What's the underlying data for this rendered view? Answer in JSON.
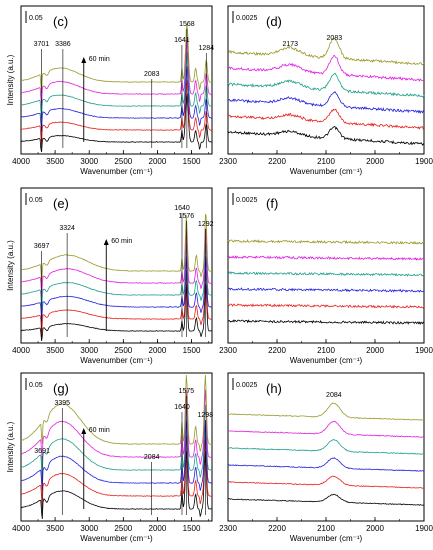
{
  "chart_data": [
    {
      "type": "line",
      "panel": "(c)",
      "scale_bar": "0.05",
      "xlabel": "Wavenumber (cm⁻¹)",
      "ylabel": "Intensity (a.u.)",
      "xlim": [
        4000,
        1200
      ],
      "x_ticks": [
        "4000",
        "3500",
        "3000",
        "2500",
        "2000",
        "1500"
      ],
      "time_arrow": "60 min",
      "peaks": [
        {
          "label": "3701",
          "x": 3701
        },
        {
          "label": "3386",
          "x": 3386
        },
        {
          "label": "2083",
          "x": 2083
        },
        {
          "label": "1641",
          "x": 1641
        },
        {
          "label": "1568",
          "x": 1568
        },
        {
          "label": "1284",
          "x": 1284
        }
      ],
      "series_colors": [
        "#000000",
        "#e8201c",
        "#2020e0",
        "#1fa08c",
        "#e020e0",
        "#9a9a2a"
      ]
    },
    {
      "type": "line",
      "panel": "(d)",
      "scale_bar": "0.0025",
      "xlabel": "Wavenumber (cm⁻¹)",
      "ylabel": "",
      "xlim": [
        2300,
        1900
      ],
      "x_ticks": [
        "2300",
        "2200",
        "2100",
        "2000",
        "1900"
      ],
      "peaks": [
        {
          "label": "2173",
          "x": 2173
        },
        {
          "label": "2083",
          "x": 2083
        }
      ],
      "series_colors": [
        "#000000",
        "#e8201c",
        "#2020e0",
        "#1fa08c",
        "#e020e0",
        "#9a9a2a"
      ]
    },
    {
      "type": "line",
      "panel": "(e)",
      "scale_bar": "0.05",
      "xlabel": "Wavenumber (cm⁻¹)",
      "ylabel": "Intensity (a.u.)",
      "xlim": [
        4000,
        1200
      ],
      "x_ticks": [
        "4000",
        "3500",
        "3000",
        "2500",
        "2000",
        "1500"
      ],
      "time_arrow": "60 min",
      "peaks": [
        {
          "label": "3697",
          "x": 3697
        },
        {
          "label": "3324",
          "x": 3324
        },
        {
          "label": "1640",
          "x": 1640
        },
        {
          "label": "1576",
          "x": 1576
        },
        {
          "label": "1292",
          "x": 1292
        }
      ],
      "series_colors": [
        "#000000",
        "#e8201c",
        "#2020e0",
        "#1fa08c",
        "#e020e0",
        "#9a9a2a"
      ]
    },
    {
      "type": "line",
      "panel": "(f)",
      "scale_bar": "0.0025",
      "xlabel": "Wavenumber (cm⁻¹)",
      "ylabel": "",
      "xlim": [
        2300,
        1900
      ],
      "x_ticks": [
        "2300",
        "2200",
        "2100",
        "2000",
        "1900"
      ],
      "peaks": [],
      "series_colors": [
        "#000000",
        "#e8201c",
        "#2020e0",
        "#1fa08c",
        "#e020e0",
        "#9a9a2a"
      ]
    },
    {
      "type": "line",
      "panel": "(g)",
      "scale_bar": "0.05",
      "xlabel": "Wavenumber (cm⁻¹)",
      "ylabel": "Intensity (a.u.)",
      "xlim": [
        4000,
        1200
      ],
      "x_ticks": [
        "4000",
        "3500",
        "3000",
        "2500",
        "2000",
        "1500"
      ],
      "time_arrow": "60 min",
      "peaks": [
        {
          "label": "3691",
          "x": 3691
        },
        {
          "label": "3395",
          "x": 3395
        },
        {
          "label": "2084",
          "x": 2084
        },
        {
          "label": "1640",
          "x": 1640
        },
        {
          "label": "1575",
          "x": 1575
        },
        {
          "label": "1298",
          "x": 1298
        }
      ],
      "series_colors": [
        "#000000",
        "#e8201c",
        "#2020e0",
        "#1fa08c",
        "#e020e0",
        "#9a9a2a"
      ]
    },
    {
      "type": "line",
      "panel": "(h)",
      "scale_bar": "0.0025",
      "xlabel": "Wavenumber (cm⁻¹)",
      "ylabel": "",
      "xlim": [
        2300,
        1900
      ],
      "x_ticks": [
        "2300",
        "2200",
        "2100",
        "2000",
        "1900"
      ],
      "peaks": [
        {
          "label": "2084",
          "x": 2084
        }
      ],
      "series_colors": [
        "#000000",
        "#e8201c",
        "#2020e0",
        "#1fa08c",
        "#e020e0",
        "#9a9a2a"
      ]
    }
  ]
}
